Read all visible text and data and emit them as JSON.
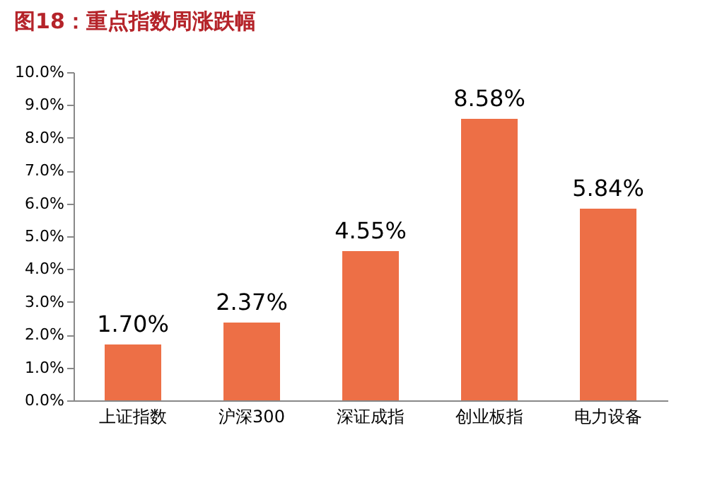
{
  "chart_data": {
    "type": "bar",
    "title": "图18：重点指数周涨跌幅",
    "categories": [
      "上证指数",
      "沪深300",
      "深证成指",
      "创业板指",
      "电力设备"
    ],
    "values": [
      1.7,
      2.37,
      4.55,
      8.58,
      5.84
    ],
    "value_labels": [
      "1.70%",
      "2.37%",
      "4.55%",
      "8.58%",
      "5.84%"
    ],
    "color": "#ed6f46",
    "ylim": [
      0,
      10
    ],
    "yticks": [
      {
        "value": 0,
        "label": "0.0%"
      },
      {
        "value": 1,
        "label": "1.0%"
      },
      {
        "value": 2,
        "label": "2.0%"
      },
      {
        "value": 3,
        "label": "3.0%"
      },
      {
        "value": 4,
        "label": "4.0%"
      },
      {
        "value": 5,
        "label": "5.0%"
      },
      {
        "value": 6,
        "label": "6.0%"
      },
      {
        "value": 7,
        "label": "7.0%"
      },
      {
        "value": 8,
        "label": "8.0%"
      },
      {
        "value": 9,
        "label": "9.0%"
      },
      {
        "value": 10,
        "label": "10.0%"
      }
    ],
    "grid": false
  }
}
